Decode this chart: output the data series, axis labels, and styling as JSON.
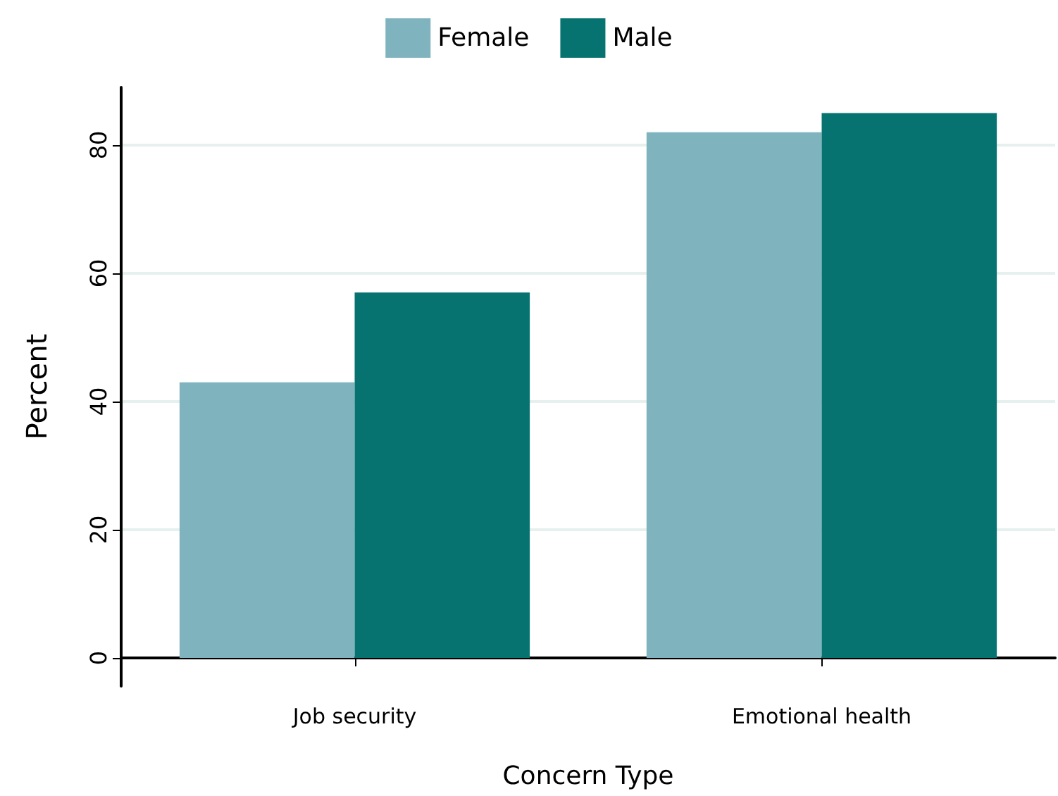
{
  "chart_data": {
    "type": "bar",
    "xlabel": "Concern Type",
    "ylabel": "Percent",
    "categories": [
      "Job security",
      "Emotional health"
    ],
    "series": [
      {
        "name": "Female",
        "color": "#7fb3bd",
        "values": [
          43,
          82
        ]
      },
      {
        "name": "Male",
        "color": "#077370",
        "values": [
          57,
          85
        ]
      }
    ],
    "ylim": [
      -4.4,
      89
    ],
    "yticks": [
      0,
      20,
      40,
      60,
      80
    ],
    "grid": "y",
    "legend": "top"
  }
}
